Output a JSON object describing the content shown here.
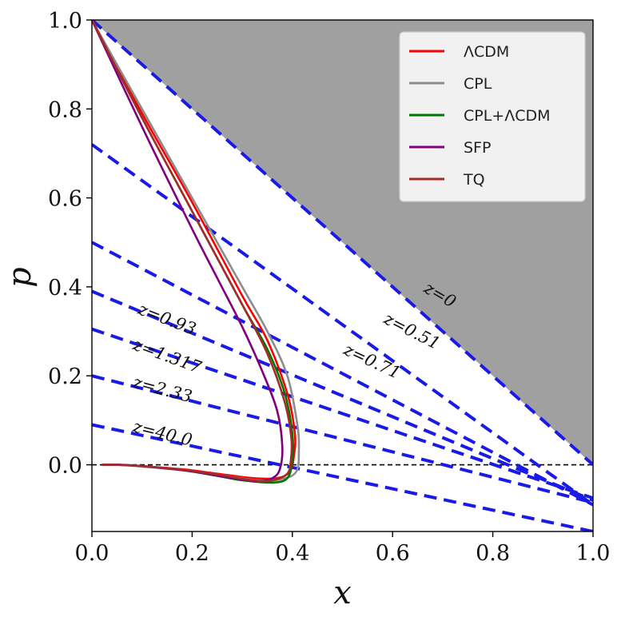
{
  "chart_data": {
    "type": "line",
    "xlabel": "x",
    "ylabel": "p",
    "xlim": [
      0.0,
      1.0
    ],
    "ylim": [
      -0.15,
      1.0
    ],
    "x_ticks": [
      "0.0",
      "0.2",
      "0.4",
      "0.6",
      "0.8",
      "1.0"
    ],
    "y_ticks": [
      "0.0",
      "0.2",
      "0.4",
      "0.6",
      "0.8",
      "1.0"
    ],
    "y_tick_values": [
      0.0,
      0.2,
      0.4,
      0.6,
      0.8,
      1.0
    ],
    "x_tick_values": [
      0.0,
      0.2,
      0.4,
      0.6,
      0.8,
      1.0
    ],
    "grid": false,
    "legend_position": "top-right",
    "shaded_region": {
      "vertices": [
        [
          0,
          1
        ],
        [
          1,
          1
        ],
        [
          1,
          0
        ]
      ],
      "color": "#a0a0a0"
    },
    "zero_line": {
      "y": 0,
      "style": "dashed",
      "color": "#000000"
    },
    "iso_redshift_lines": [
      {
        "label": "z=0",
        "intercept": 1.0,
        "slope": -1.0,
        "label_at": [
          0.66,
          0.39
        ],
        "angle": 30
      },
      {
        "label": "z=0.51",
        "intercept": 0.72,
        "slope": -0.81,
        "label_at": [
          0.58,
          0.32
        ],
        "angle": 27
      },
      {
        "label": "z=0.71",
        "intercept": 0.5,
        "slope": -0.59,
        "label_at": [
          0.5,
          0.25
        ],
        "angle": 25
      },
      {
        "label": "z=0.93",
        "intercept": 0.39,
        "slope": -0.47,
        "label_at": [
          0.09,
          0.34
        ],
        "angle": 21
      },
      {
        "label": "z=1.317",
        "intercept": 0.305,
        "slope": -0.38,
        "label_at": [
          0.08,
          0.26
        ],
        "angle": 20
      },
      {
        "label": "z=2.33",
        "intercept": 0.2,
        "slope": -0.285,
        "label_at": [
          0.08,
          0.175
        ],
        "angle": 15
      },
      {
        "label": "z=40.0",
        "intercept": 0.09,
        "slope": -0.24,
        "label_at": [
          0.08,
          0.075
        ],
        "angle": 14
      }
    ],
    "series": [
      {
        "name": "ΛCDM",
        "color": "#ff0000",
        "x": [
          0.0,
          0.1,
          0.2,
          0.3,
          0.35,
          0.39,
          0.405,
          0.403,
          0.395,
          0.37,
          0.32,
          0.25,
          0.18,
          0.1,
          0.05,
          0.02
        ],
        "y": [
          1.0,
          0.79,
          0.59,
          0.38,
          0.28,
          0.16,
          0.07,
          0.02,
          -0.015,
          -0.03,
          -0.03,
          -0.02,
          -0.01,
          -0.003,
          0.0,
          0.0
        ]
      },
      {
        "name": "CPL",
        "color": "#8c8c8c",
        "x": [
          0.0,
          0.1,
          0.2,
          0.3,
          0.35,
          0.39,
          0.41,
          0.413,
          0.408,
          0.38,
          0.33,
          0.25,
          0.18,
          0.1,
          0.05,
          0.02
        ],
        "y": [
          1.0,
          0.8,
          0.6,
          0.4,
          0.3,
          0.2,
          0.09,
          0.03,
          -0.015,
          -0.032,
          -0.035,
          -0.022,
          -0.012,
          -0.004,
          0.0,
          0.0
        ]
      },
      {
        "name": "CPL+ΛCDM",
        "color": "#007700",
        "x": [
          0.0,
          0.1,
          0.2,
          0.3,
          0.35,
          0.385,
          0.4,
          0.4,
          0.39,
          0.36,
          0.3,
          0.25,
          0.18,
          0.1,
          0.05,
          0.02
        ],
        "y": [
          1.0,
          0.78,
          0.57,
          0.36,
          0.26,
          0.16,
          0.07,
          0.01,
          -0.03,
          -0.04,
          -0.035,
          -0.025,
          -0.012,
          -0.003,
          0.0,
          0.0
        ]
      },
      {
        "name": "SFP",
        "color": "#800080",
        "x": [
          0.0,
          0.1,
          0.2,
          0.25,
          0.3,
          0.34,
          0.37,
          0.38,
          0.375,
          0.36,
          0.33,
          0.28,
          0.2,
          0.12,
          0.06,
          0.02
        ],
        "y": [
          1.0,
          0.76,
          0.53,
          0.42,
          0.31,
          0.21,
          0.12,
          0.04,
          -0.01,
          -0.03,
          -0.037,
          -0.03,
          -0.015,
          -0.005,
          0.0,
          0.0
        ]
      },
      {
        "name": "TQ",
        "color": "#a52a2a",
        "x": [
          0.0,
          0.1,
          0.2,
          0.3,
          0.35,
          0.385,
          0.398,
          0.397,
          0.39,
          0.36,
          0.32,
          0.25,
          0.18,
          0.1,
          0.05,
          0.02
        ],
        "y": [
          1.0,
          0.78,
          0.57,
          0.36,
          0.25,
          0.14,
          0.06,
          0.01,
          -0.02,
          -0.035,
          -0.035,
          -0.022,
          -0.011,
          -0.003,
          0.0,
          0.0
        ]
      }
    ]
  }
}
